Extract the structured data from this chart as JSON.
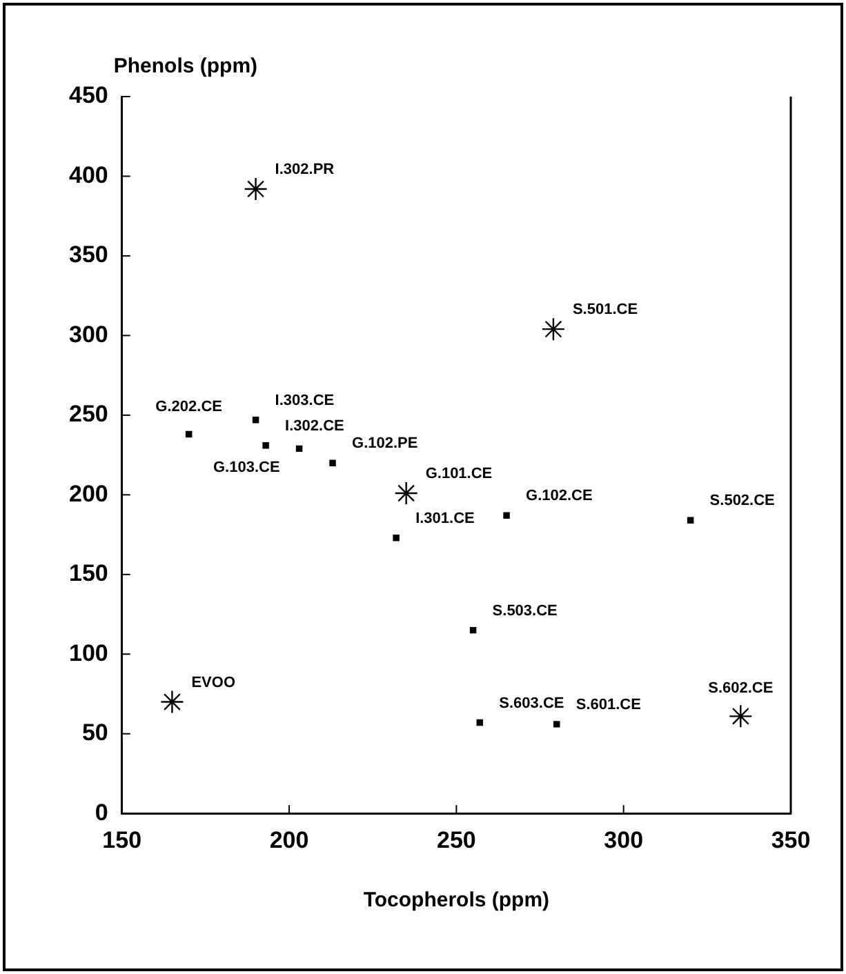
{
  "chart_data": {
    "type": "scatter",
    "xlabel": "Tocopherols (ppm)",
    "ylabel": "Phenols (ppm)",
    "xlim": [
      150,
      350
    ],
    "xticks": [
      150,
      200,
      250,
      300,
      350
    ],
    "ylim": [
      0,
      450
    ],
    "yticks": [
      0,
      50,
      100,
      150,
      200,
      250,
      300,
      350,
      400,
      450
    ],
    "grid": false,
    "legend": false,
    "series": [
      {
        "color": "#000000",
        "marker": "cross",
        "x": [
          190,
          235,
          165,
          279,
          335
        ],
        "values": [
          392,
          201,
          70,
          304,
          61
        ]
      },
      {
        "color": "#000000",
        "marker": "square",
        "x": [
          170,
          190,
          193,
          203,
          213,
          232,
          265,
          320,
          255,
          257,
          280
        ],
        "values": [
          238,
          247,
          231,
          229,
          220,
          173,
          187,
          184,
          115,
          57,
          56
        ]
      }
    ],
    "annotations": [
      {
        "text": "I.302.PR",
        "x": 190,
        "y": 392
      },
      {
        "text": "I.303.CE",
        "x": 190,
        "y": 247
      },
      {
        "text": "G.202.CE",
        "x": 170,
        "y": 238
      },
      {
        "text": "G.102.PE",
        "x": 213,
        "y": 220
      },
      {
        "text": "G.101.CE",
        "x": 235,
        "y": 201
      },
      {
        "text": "I.302.CE",
        "x": 193,
        "y": 231
      },
      {
        "text": "I.301.CE",
        "x": 232,
        "y": 173
      },
      {
        "text": "G.103.CE",
        "x": 203,
        "y": 229
      },
      {
        "text": "EVOO",
        "x": 165,
        "y": 70
      },
      {
        "text": "S.501.CE",
        "x": 279,
        "y": 304
      },
      {
        "text": "G.102.CE",
        "x": 265,
        "y": 187
      },
      {
        "text": "S.502.CE",
        "x": 320,
        "y": 184
      },
      {
        "text": "S.503.CE",
        "x": 255,
        "y": 115
      },
      {
        "text": "S.602.CE",
        "x": 335,
        "y": 61
      },
      {
        "text": "S.603.CE",
        "x": 257,
        "y": 57
      },
      {
        "text": "S.601.CE",
        "x": 280,
        "y": 56
      }
    ]
  }
}
